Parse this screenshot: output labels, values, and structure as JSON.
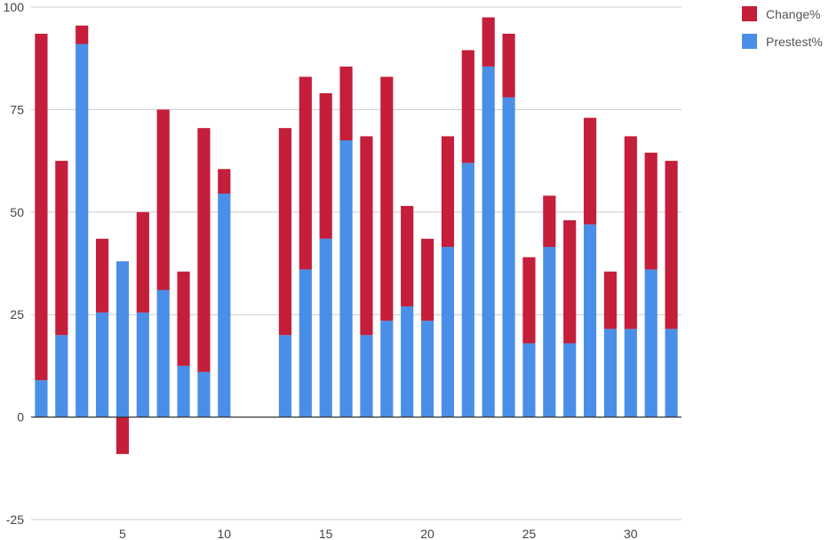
{
  "chart_data": {
    "type": "bar",
    "stacked": true,
    "x": [
      1,
      2,
      3,
      4,
      5,
      6,
      7,
      8,
      9,
      10,
      11,
      12,
      13,
      14,
      15,
      16,
      17,
      18,
      19,
      20,
      21,
      22,
      23,
      24,
      25,
      26,
      27,
      28,
      29,
      30,
      31,
      32
    ],
    "series": [
      {
        "name": "Prestest%",
        "color": "#4a8fe7",
        "values": [
          9,
          20,
          91,
          25.5,
          38,
          25.5,
          31,
          12.5,
          11,
          54.5,
          0,
          0,
          20,
          36,
          43.5,
          67.5,
          20,
          23.5,
          27,
          23.5,
          41.5,
          62,
          85.5,
          78,
          18,
          41.5,
          18,
          47,
          21.5,
          21.5,
          36,
          21.5
        ]
      },
      {
        "name": "Change%",
        "color": "#c41e3a",
        "values": [
          84.5,
          42.5,
          4.5,
          18,
          -9,
          24.5,
          44,
          23,
          59.5,
          6,
          0,
          0,
          50.5,
          47,
          35.5,
          18,
          48.5,
          59.5,
          24.5,
          20,
          27,
          27.5,
          12,
          15.5,
          21,
          12.5,
          30,
          26,
          14,
          47,
          28.5,
          41
        ]
      }
    ],
    "ylim": [
      -25,
      100
    ],
    "yticks": [
      -25,
      0,
      25,
      50,
      75,
      100
    ],
    "xticks": [
      5,
      10,
      15,
      20,
      25,
      30
    ],
    "grid": true,
    "legend": "top-right",
    "title": "",
    "xlabel": "",
    "ylabel": ""
  },
  "legend": {
    "items": [
      {
        "label": "Change%",
        "color": "#c41e3a"
      },
      {
        "label": "Prestest%",
        "color": "#4a8fe7"
      }
    ]
  }
}
